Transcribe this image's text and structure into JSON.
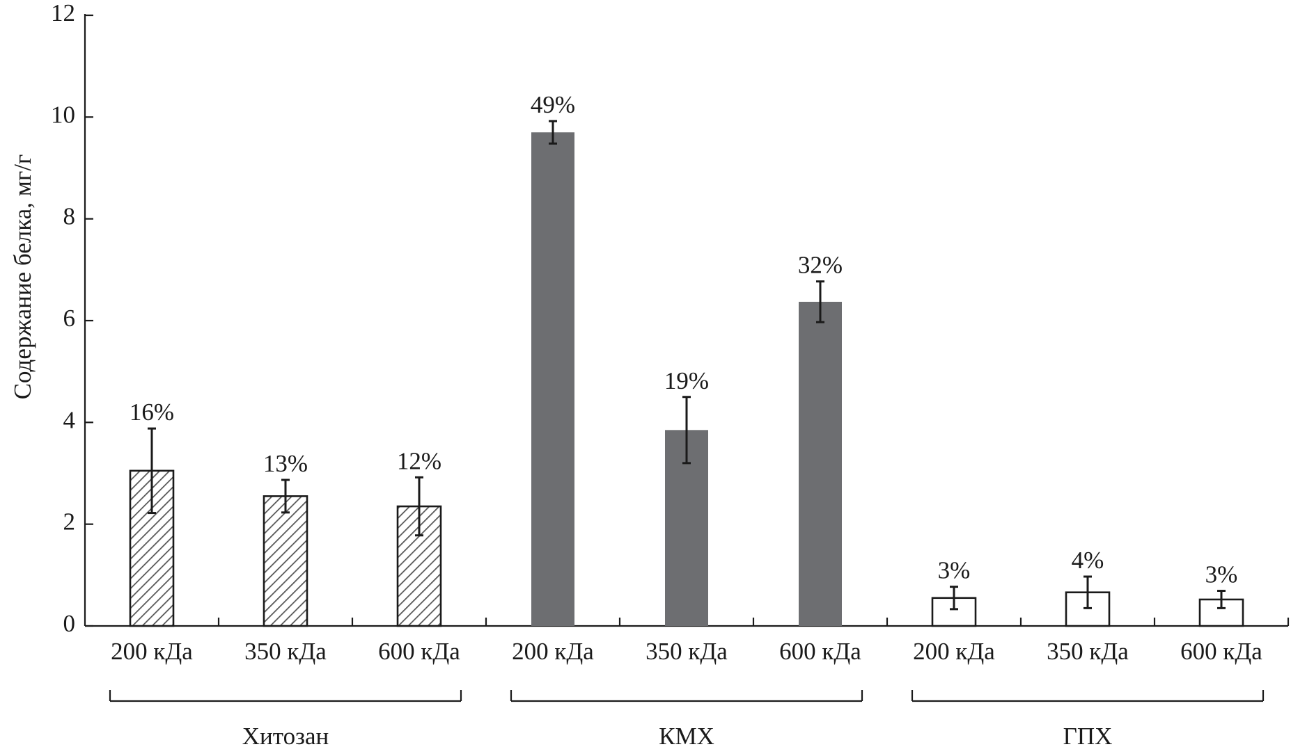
{
  "chart_data": {
    "type": "bar",
    "ylabel": "Содержание белка, мг/г",
    "ylim": [
      0,
      12
    ],
    "yticks": [
      0,
      2,
      4,
      6,
      8,
      10,
      12
    ],
    "groups": [
      {
        "name": "Хитозан",
        "style": "hatched",
        "bars": [
          {
            "category": "200 кДа",
            "value": 3.05,
            "error": 0.83,
            "label": "16%"
          },
          {
            "category": "350 кДа",
            "value": 2.55,
            "error": 0.32,
            "label": "13%"
          },
          {
            "category": "600 кДа",
            "value": 2.35,
            "error": 0.57,
            "label": "12%"
          }
        ]
      },
      {
        "name": "КМХ",
        "style": "solid",
        "bars": [
          {
            "category": "200 кДа",
            "value": 9.7,
            "error": 0.22,
            "label": "49%"
          },
          {
            "category": "350 кДа",
            "value": 3.85,
            "error": 0.65,
            "label": "19%"
          },
          {
            "category": "600 кДа",
            "value": 6.37,
            "error": 0.4,
            "label": "32%"
          }
        ]
      },
      {
        "name": "ГПХ",
        "style": "open",
        "bars": [
          {
            "category": "200 кДа",
            "value": 0.55,
            "error": 0.22,
            "label": "3%"
          },
          {
            "category": "350 кДа",
            "value": 0.66,
            "error": 0.31,
            "label": "4%"
          },
          {
            "category": "600 кДа",
            "value": 0.52,
            "error": 0.17,
            "label": "3%"
          }
        ]
      }
    ],
    "grid": false,
    "colors": {
      "solid": "#6d6e71",
      "hatch": "#555555",
      "axis": "#1a1a1a",
      "open": "#ffffff"
    }
  }
}
